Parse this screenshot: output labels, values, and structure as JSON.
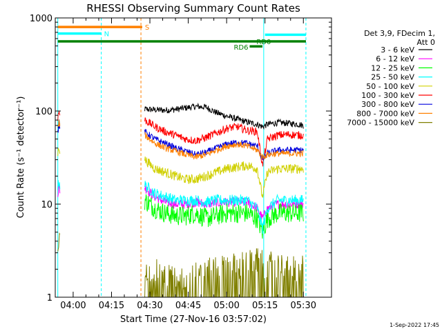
{
  "chart_data": {
    "type": "line",
    "title": "RHESSI Observing Summary Count Rates",
    "xlabel": "Start Time (27-Nov-16 03:57:02)",
    "ylabel": "Count Rate (s⁻¹ detector⁻¹)",
    "yscale": "log",
    "ylim": [
      1,
      1000
    ],
    "xlim_minutes": [
      -7,
      101
    ],
    "x_ticks": [
      {
        "t": 0,
        "label": "04:00"
      },
      {
        "t": 15,
        "label": "04:15"
      },
      {
        "t": 30,
        "label": "04:30"
      },
      {
        "t": 45,
        "label": "04:45"
      },
      {
        "t": 60,
        "label": "05:00"
      },
      {
        "t": 75,
        "label": "05:15"
      },
      {
        "t": 90,
        "label": "05:30"
      }
    ],
    "y_ticks": [
      {
        "v": 1,
        "label": "1"
      },
      {
        "v": 10,
        "label": "10"
      },
      {
        "v": 100,
        "label": "100"
      },
      {
        "v": 1000,
        "label": "1000"
      }
    ],
    "legend_header": [
      "Det 3,9, FDecim 1,",
      "Att 0"
    ],
    "legend_position": "right",
    "timestamp": "1-Sep-2022 17:45",
    "flags": [
      {
        "label": "S",
        "color": "#ff8000",
        "t0": -6,
        "t1": 27,
        "level": 800
      },
      {
        "label": "N",
        "color": "#00ffff",
        "t0": -6,
        "t1": 11,
        "level": 680
      },
      {
        "label": "RD0",
        "color": "#008000",
        "t0": -6,
        "t1": 91,
        "level": 560
      },
      {
        "label": "RD6",
        "color": "#008000",
        "t0": 69,
        "t1": 74,
        "level": 495
      },
      {
        "label": "",
        "color": "#00ffff",
        "t0": 75,
        "t1": 91,
        "level": 660
      }
    ],
    "vlines": [
      {
        "t": -6,
        "color": "#00ffff",
        "dash": false
      },
      {
        "t": 11,
        "color": "#00ffff",
        "dash": true
      },
      {
        "t": 26.5,
        "color": "#ff8000",
        "dash": true
      },
      {
        "t": 74.5,
        "color": "#00ffff",
        "dash": false
      },
      {
        "t": 91,
        "color": "#00ffff",
        "dash": true
      }
    ],
    "segments": [
      {
        "t0": -6,
        "t1": -5.2
      },
      {
        "t0": 28,
        "t1": 90
      }
    ],
    "series": [
      {
        "name": "3 - 6 keV",
        "color": "#000000",
        "x": [
          -6,
          -5.5,
          -5.2,
          28,
          32,
          36,
          40,
          44,
          48,
          52,
          56,
          60,
          64,
          68,
          72,
          74,
          76,
          80,
          84,
          88,
          90
        ],
        "values": [
          65,
          75,
          68,
          105,
          103,
          102,
          104,
          108,
          112,
          110,
          96,
          88,
          82,
          76,
          72,
          68,
          72,
          75,
          74,
          72,
          70
        ]
      },
      {
        "name": "6 - 12 keV",
        "color": "#ff00ff",
        "x": [
          -6,
          -5.5,
          -5.2,
          28,
          32,
          36,
          40,
          44,
          48,
          52,
          56,
          60,
          64,
          68,
          72,
          74,
          76,
          80,
          84,
          88,
          90
        ],
        "values": [
          13,
          15,
          14,
          15,
          12,
          10.5,
          10,
          10,
          10.5,
          10,
          10.3,
          10.5,
          10.5,
          10.5,
          9,
          7,
          9,
          10,
          10,
          10,
          10
        ]
      },
      {
        "name": "12 - 25 keV",
        "color": "#00ff00",
        "x": [
          28,
          32,
          36,
          40,
          44,
          48,
          52,
          56,
          60,
          64,
          68,
          72,
          74,
          76,
          80,
          84,
          88,
          90
        ],
        "values": [
          11,
          9,
          8,
          7.5,
          7.5,
          8,
          7,
          7.5,
          8,
          8,
          8,
          7,
          5,
          7,
          8,
          8,
          8,
          8
        ]
      },
      {
        "name": "25 - 50 keV",
        "color": "#00ffff",
        "x": [
          -6,
          -5.5,
          -5.2,
          28,
          32,
          36,
          40,
          44,
          48,
          52,
          56,
          60,
          64,
          68,
          72,
          74,
          76,
          80,
          84,
          88,
          90
        ],
        "values": [
          15,
          18,
          16,
          16,
          13,
          12,
          11,
          11,
          11,
          10.5,
          11,
          11,
          11,
          11,
          9,
          5.5,
          9,
          11,
          11,
          11,
          11
        ]
      },
      {
        "name": "50 - 100 keV",
        "color": "#d0d000",
        "x": [
          -6,
          -5.5,
          -5.2,
          28,
          32,
          36,
          40,
          44,
          48,
          52,
          56,
          60,
          64,
          68,
          72,
          74,
          76,
          80,
          84,
          88,
          90
        ],
        "values": [
          35,
          42,
          38,
          30,
          24,
          22,
          20,
          18.5,
          18.5,
          20,
          22,
          24,
          25,
          26,
          24,
          12,
          22,
          24,
          24,
          24,
          24
        ]
      },
      {
        "name": "100 - 300 keV",
        "color": "#ff0000",
        "x": [
          -6,
          -5.5,
          -5.2,
          28,
          32,
          36,
          40,
          44,
          48,
          52,
          56,
          60,
          64,
          68,
          72,
          74,
          76,
          80,
          84,
          88,
          90
        ],
        "values": [
          85,
          100,
          90,
          80,
          68,
          60,
          55,
          50,
          48,
          52,
          58,
          65,
          68,
          62,
          60,
          26,
          50,
          55,
          56,
          55,
          55
        ]
      },
      {
        "name": "300 - 800 keV",
        "color": "#0000dd",
        "x": [
          -6,
          -5.5,
          -5.2,
          28,
          32,
          36,
          40,
          44,
          48,
          52,
          56,
          60,
          64,
          68,
          72,
          74,
          76,
          80,
          84,
          88,
          90
        ],
        "values": [
          60,
          70,
          65,
          60,
          50,
          45,
          40,
          37,
          34,
          36,
          40,
          44,
          46,
          45,
          42,
          30,
          35,
          38,
          38,
          38,
          38
        ]
      },
      {
        "name": "800 - 7000 keV",
        "color": "#ff8000",
        "x": [
          -6,
          -5.5,
          -5.2,
          28,
          32,
          36,
          40,
          44,
          48,
          52,
          56,
          60,
          64,
          68,
          72,
          74,
          76,
          80,
          84,
          88,
          90
        ],
        "values": [
          65,
          75,
          70,
          55,
          45,
          40,
          37,
          34,
          32,
          34,
          38,
          42,
          44,
          42,
          38,
          32,
          34,
          35,
          35,
          35,
          35
        ]
      },
      {
        "name": "7000 - 15000 keV",
        "color": "#808000",
        "x": [
          -6,
          -5.5,
          -5.2,
          28,
          32,
          36,
          40,
          44,
          48,
          52,
          56,
          60,
          64,
          68,
          72,
          74,
          76,
          80,
          84,
          88,
          90
        ],
        "values": [
          3,
          4,
          5,
          1.6,
          1.3,
          1.2,
          1.1,
          1.1,
          1.2,
          1.3,
          1.4,
          1.5,
          1.5,
          1.6,
          1.7,
          1.6,
          1.6,
          1.5,
          1.5,
          1.4,
          1.4
        ]
      }
    ]
  }
}
